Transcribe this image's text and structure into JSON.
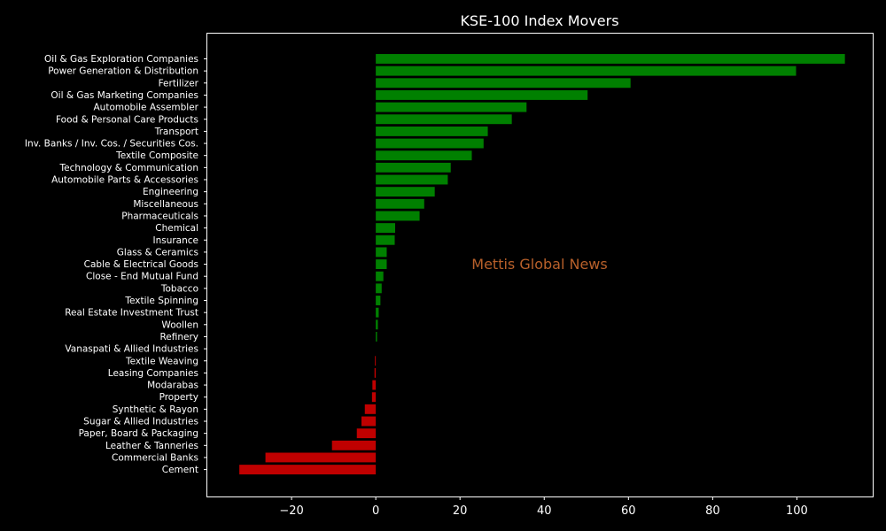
{
  "chart_data": {
    "type": "bar",
    "orientation": "horizontal",
    "title": "KSE-100 Index Movers",
    "xlabel": "",
    "ylabel": "",
    "xlim": [
      -40,
      118
    ],
    "xticks": [
      -20,
      0,
      20,
      40,
      60,
      80,
      100
    ],
    "grid": false,
    "annotation": "Mettis Global News",
    "colors": {
      "positive": "#008000",
      "negative": "#c00000",
      "background": "#000000",
      "text": "#ffffff",
      "annotation": "#b8602a"
    },
    "categories": [
      "Oil & Gas Exploration Companies",
      "Power Generation & Distribution",
      "Fertilizer",
      "Oil & Gas Marketing Companies",
      "Automobile Assembler",
      "Food & Personal Care Products",
      "Transport",
      "Inv. Banks / Inv. Cos. / Securities Cos.",
      "Textile Composite",
      "Technology & Communication",
      "Automobile Parts & Accessories",
      "Engineering",
      "Miscellaneous",
      "Pharmaceuticals",
      "Chemical",
      "Insurance",
      "Glass & Ceramics",
      "Cable & Electrical Goods",
      "Close - End Mutual Fund",
      "Tobacco",
      "Textile Spinning",
      "Real Estate Investment Trust",
      "Woollen",
      "Refinery",
      "Vanaspati & Allied Industries",
      "Textile Weaving",
      "Leasing Companies",
      "Modarabas",
      "Property",
      "Synthetic & Rayon",
      "Sugar & Allied Industries",
      "Paper, Board & Packaging",
      "Leather & Tanneries",
      "Commercial Banks",
      "Cement"
    ],
    "values": [
      111.4,
      99.8,
      60.5,
      50.3,
      35.8,
      32.3,
      26.6,
      25.6,
      22.8,
      17.8,
      17.1,
      14.0,
      11.5,
      10.4,
      4.6,
      4.5,
      2.6,
      2.6,
      1.8,
      1.4,
      1.1,
      0.7,
      0.5,
      0.3,
      0.0,
      -0.2,
      -0.3,
      -0.8,
      -0.9,
      -2.6,
      -3.4,
      -4.5,
      -10.4,
      -26.2,
      -32.4
    ]
  }
}
